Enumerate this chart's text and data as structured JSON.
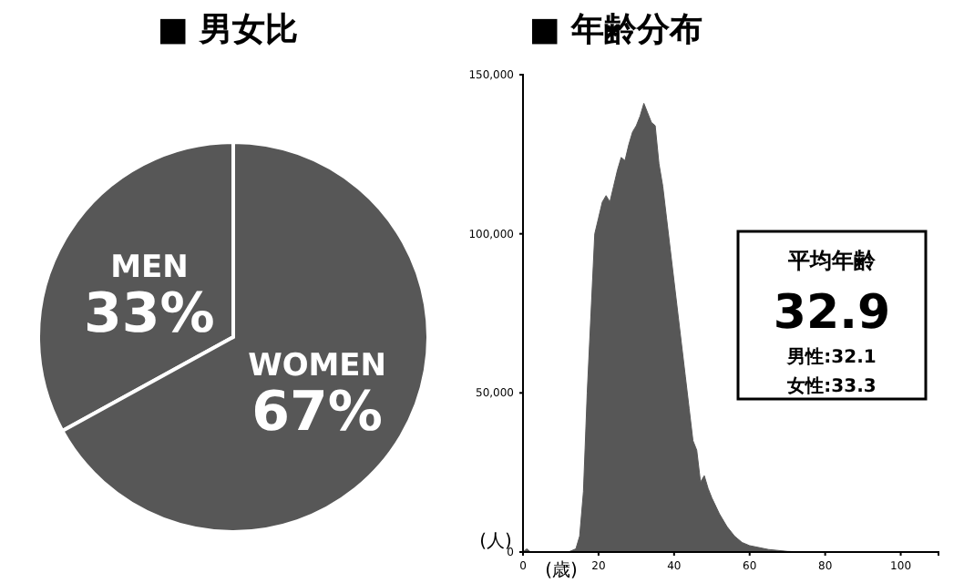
{
  "chart_data": [
    {
      "type": "pie",
      "title": "■ 男女比",
      "categories": [
        "MEN",
        "WOMEN"
      ],
      "values": [
        33,
        67
      ],
      "colors": [
        "#575757",
        "#575757"
      ],
      "value_labels": [
        "33%",
        "67%"
      ]
    },
    {
      "type": "area",
      "title": "■ 年齢分布",
      "xlabel": "(歳)",
      "ylabel": "(人)",
      "xlim": [
        0,
        110
      ],
      "xticks": [
        0,
        20,
        40,
        60,
        80,
        100
      ],
      "ylim": [
        0,
        150000
      ],
      "yticks": [
        0,
        {
          "value": 50000,
          "label": "50,000"
        },
        {
          "value": 100000,
          "label": "100,000"
        },
        {
          "value": 150000,
          "label": "150,000"
        }
      ],
      "x": [
        0,
        1,
        2,
        12,
        14,
        15,
        16,
        17,
        18,
        19,
        20,
        21,
        22,
        23,
        24,
        25,
        26,
        27,
        28,
        29,
        30,
        31,
        32,
        33,
        34,
        35,
        36,
        37,
        38,
        39,
        40,
        41,
        42,
        43,
        44,
        45,
        46,
        47,
        48,
        49,
        50,
        52,
        54,
        56,
        58,
        60,
        65,
        70,
        75,
        110
      ],
      "series": [
        {
          "color": "#575757",
          "values": [
            0,
            1000,
            0,
            0,
            1000,
            5000,
            19000,
            50000,
            75000,
            100000,
            105000,
            110000,
            112000,
            110000,
            115000,
            120000,
            124000,
            123000,
            128000,
            132000,
            134000,
            137000,
            141000,
            138000,
            135000,
            134000,
            122000,
            115000,
            105000,
            95000,
            85000,
            75000,
            65000,
            55000,
            45000,
            35000,
            32000,
            22000,
            24000,
            20000,
            17000,
            12000,
            8000,
            5000,
            3000,
            2000,
            800,
            200,
            0,
            0
          ]
        }
      ],
      "annotations": [
        "平均年齢",
        "32.9",
        "男性:32.1",
        "女性:33.3"
      ]
    }
  ]
}
